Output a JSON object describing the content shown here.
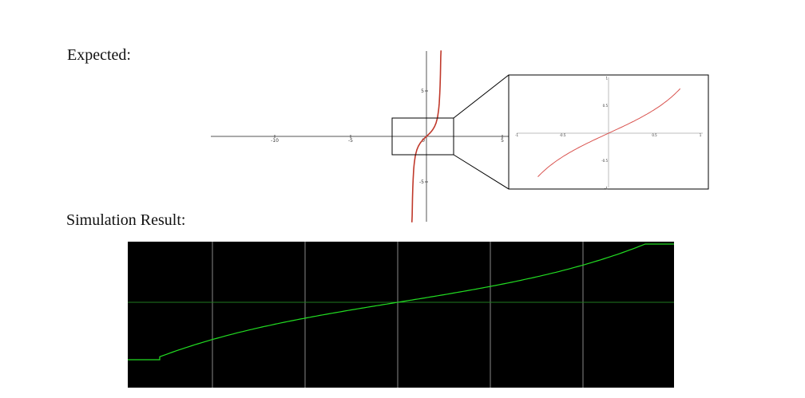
{
  "headings": {
    "expected": "Expected:",
    "simulation": "Simulation Result:"
  },
  "expected_plot": {
    "x_ticks": [
      {
        "value": -10,
        "label": "-10"
      },
      {
        "value": -5,
        "label": "-5"
      },
      {
        "value": 5,
        "label": "5"
      }
    ],
    "y_ticks": [
      {
        "value": 5,
        "label": "5"
      },
      {
        "value": -5,
        "label": "-5"
      }
    ],
    "origin_label": "0",
    "curve_color": "#c0392b"
  },
  "zoom_inset": {
    "x_ticks": [
      {
        "value": -1,
        "label": "-1"
      },
      {
        "value": -0.5,
        "label": "-0.5"
      },
      {
        "value": 0.5,
        "label": "0.5"
      },
      {
        "value": 1,
        "label": "1"
      }
    ],
    "y_ticks": [
      {
        "value": 1,
        "label": "1"
      },
      {
        "value": 0.5,
        "label": "0.5"
      },
      {
        "value": -0.5,
        "label": "-0.5"
      },
      {
        "value": -1,
        "label": "-1"
      }
    ],
    "curve_color": "#d9534f"
  },
  "simulation": {
    "background": "#000000",
    "trace_color": "#22dd22",
    "grid_color": "#888888",
    "axis_color": "#1f7a1f"
  }
}
